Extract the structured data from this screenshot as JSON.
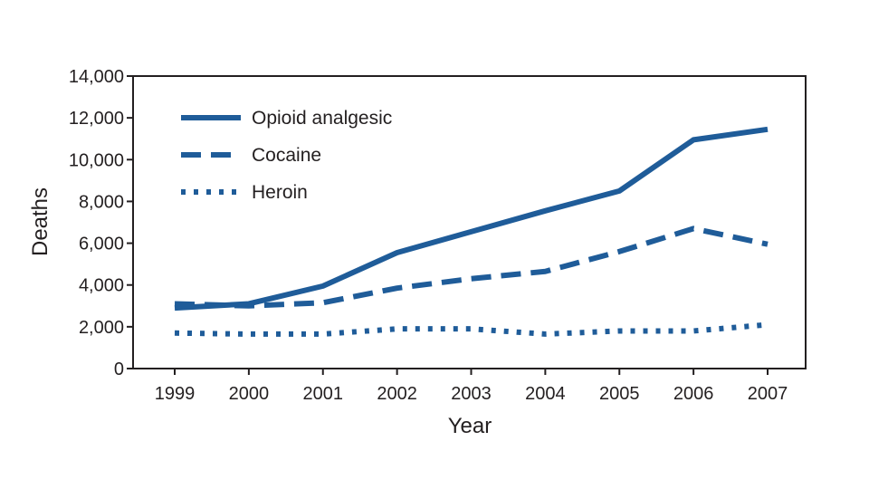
{
  "chart_data": {
    "type": "line",
    "title": "",
    "xlabel": "Year",
    "ylabel": "Deaths",
    "x": [
      1999,
      2000,
      2001,
      2002,
      2003,
      2004,
      2005,
      2006,
      2007
    ],
    "x_tick_labels": [
      "1999",
      "2000",
      "2001",
      "2002",
      "2003",
      "2004",
      "2005",
      "2006",
      "2007"
    ],
    "ylim": [
      0,
      14000
    ],
    "y_ticks": [
      0,
      2000,
      4000,
      6000,
      8000,
      10000,
      12000,
      14000
    ],
    "y_tick_labels": [
      "0",
      "2,000",
      "4,000",
      "6,000",
      "8,000",
      "10,000",
      "12,000",
      "14,000"
    ],
    "grid": false,
    "legend_position": "top-left",
    "series": [
      {
        "name": "Opioid analgesic",
        "style": "solid",
        "values": [
          2900,
          3100,
          3950,
          5550,
          6550,
          7550,
          8500,
          10950,
          11450
        ]
      },
      {
        "name": "Cocaine",
        "style": "dashed",
        "values": [
          3100,
          3000,
          3150,
          3850,
          4300,
          4650,
          5600,
          6700,
          5950
        ]
      },
      {
        "name": "Heroin",
        "style": "dotted",
        "values": [
          1700,
          1650,
          1650,
          1900,
          1900,
          1650,
          1800,
          1800,
          2100
        ]
      }
    ],
    "colors": {
      "series": "#1f5c99",
      "axis": "#231f20"
    }
  }
}
